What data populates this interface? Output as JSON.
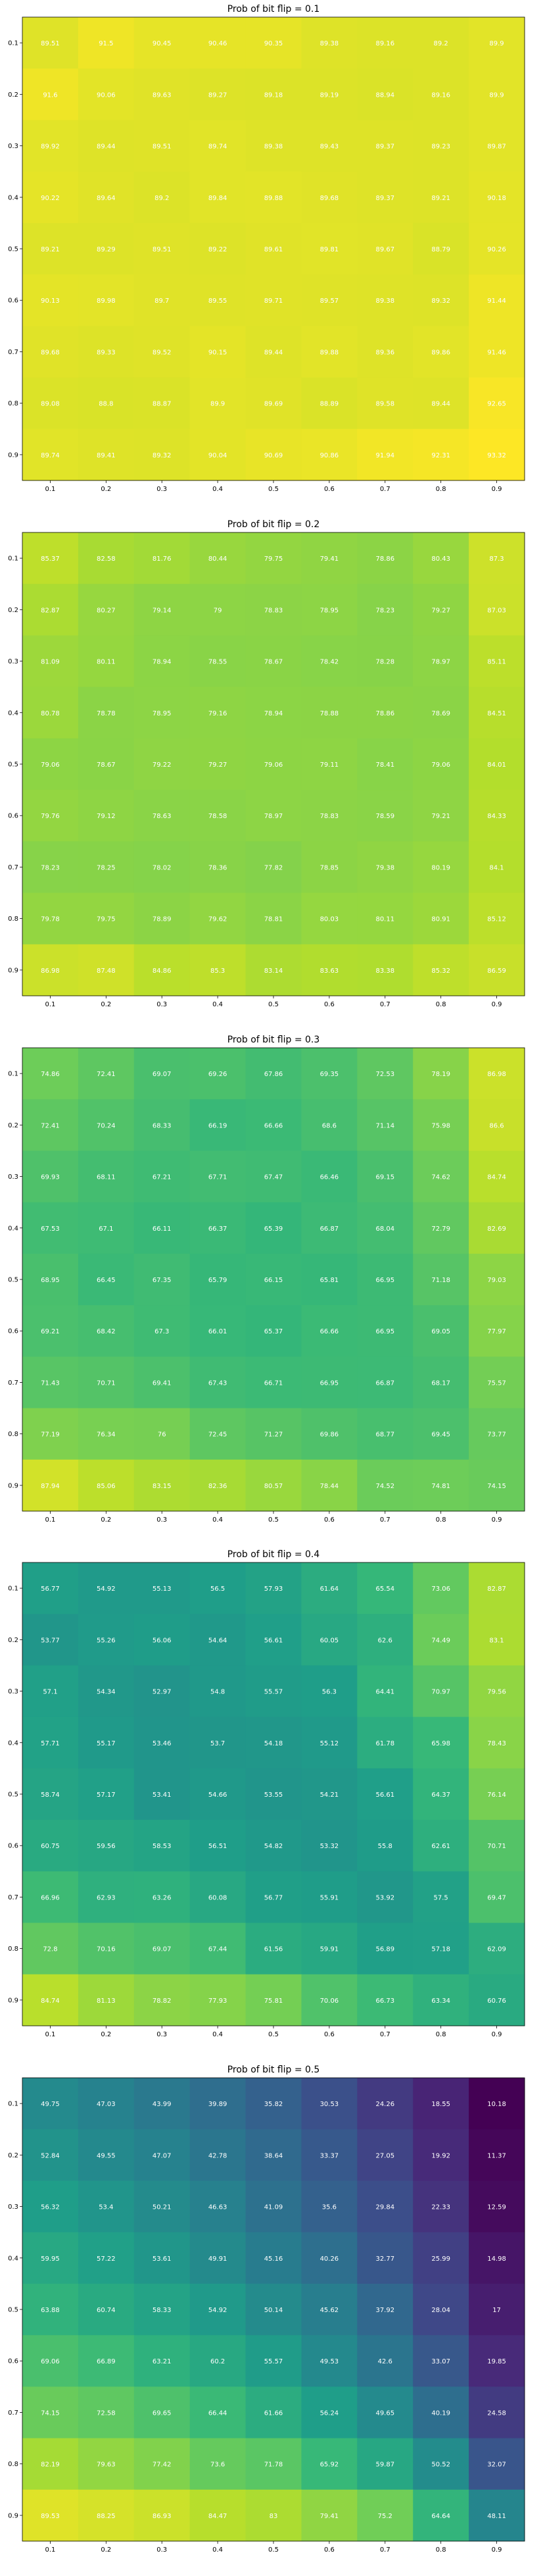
{
  "chart_data": [
    {
      "type": "heatmap",
      "title": "Prob of bit flip = 0.1",
      "x": [
        "0.1",
        "0.2",
        "0.3",
        "0.4",
        "0.5",
        "0.6",
        "0.7",
        "0.8",
        "0.9"
      ],
      "y": [
        "0.1",
        "0.2",
        "0.3",
        "0.4",
        "0.5",
        "0.6",
        "0.7",
        "0.8",
        "0.9"
      ],
      "values": [
        [
          89.51,
          91.5,
          90.45,
          90.46,
          90.35,
          89.38,
          89.16,
          89.2,
          89.9
        ],
        [
          91.6,
          90.06,
          89.63,
          89.27,
          89.18,
          89.19,
          88.94,
          89.16,
          89.9
        ],
        [
          89.92,
          89.44,
          89.51,
          89.74,
          89.38,
          89.43,
          89.37,
          89.23,
          89.87
        ],
        [
          90.22,
          89.64,
          89.2,
          89.84,
          89.88,
          89.68,
          89.37,
          89.21,
          90.18
        ],
        [
          89.21,
          89.29,
          89.51,
          89.22,
          89.61,
          89.81,
          89.67,
          88.79,
          90.26
        ],
        [
          90.13,
          89.98,
          89.7,
          89.55,
          89.71,
          89.57,
          89.38,
          89.32,
          91.44
        ],
        [
          89.68,
          89.33,
          89.52,
          90.15,
          89.44,
          89.88,
          89.36,
          89.86,
          91.46
        ],
        [
          89.08,
          88.8,
          88.87,
          89.9,
          89.69,
          88.89,
          89.58,
          89.44,
          92.65
        ],
        [
          89.74,
          89.41,
          89.32,
          90.04,
          90.69,
          90.86,
          91.94,
          92.31,
          93.32
        ]
      ]
    },
    {
      "type": "heatmap",
      "title": "Prob of bit flip = 0.2",
      "x": [
        "0.1",
        "0.2",
        "0.3",
        "0.4",
        "0.5",
        "0.6",
        "0.7",
        "0.8",
        "0.9"
      ],
      "y": [
        "0.1",
        "0.2",
        "0.3",
        "0.4",
        "0.5",
        "0.6",
        "0.7",
        "0.8",
        "0.9"
      ],
      "values": [
        [
          85.37,
          82.58,
          81.76,
          80.44,
          79.75,
          79.41,
          78.86,
          80.43,
          87.3
        ],
        [
          82.87,
          80.27,
          79.14,
          79.0,
          78.83,
          78.95,
          78.23,
          79.27,
          87.03
        ],
        [
          81.09,
          80.11,
          78.94,
          78.55,
          78.67,
          78.42,
          78.28,
          78.97,
          85.11
        ],
        [
          80.78,
          78.78,
          78.95,
          79.16,
          78.94,
          78.88,
          78.86,
          78.69,
          84.51
        ],
        [
          79.06,
          78.67,
          79.22,
          79.27,
          79.06,
          79.11,
          78.41,
          79.06,
          84.01
        ],
        [
          79.76,
          79.12,
          78.63,
          78.58,
          78.97,
          78.83,
          78.59,
          79.21,
          84.33
        ],
        [
          78.23,
          78.25,
          78.02,
          78.36,
          77.82,
          78.85,
          79.38,
          80.19,
          84.1
        ],
        [
          79.78,
          79.75,
          78.89,
          79.62,
          78.81,
          80.03,
          80.11,
          80.91,
          85.12
        ],
        [
          86.98,
          87.48,
          84.86,
          85.3,
          83.14,
          83.63,
          83.38,
          85.32,
          86.59
        ]
      ]
    },
    {
      "type": "heatmap",
      "title": "Prob of bit flip = 0.3",
      "x": [
        "0.1",
        "0.2",
        "0.3",
        "0.4",
        "0.5",
        "0.6",
        "0.7",
        "0.8",
        "0.9"
      ],
      "y": [
        "0.1",
        "0.2",
        "0.3",
        "0.4",
        "0.5",
        "0.6",
        "0.7",
        "0.8",
        "0.9"
      ],
      "values": [
        [
          74.86,
          72.41,
          69.07,
          69.26,
          67.86,
          69.35,
          72.53,
          78.19,
          86.98
        ],
        [
          72.41,
          70.24,
          68.33,
          66.19,
          66.66,
          68.6,
          71.14,
          75.98,
          86.6
        ],
        [
          69.93,
          68.11,
          67.21,
          67.71,
          67.47,
          66.46,
          69.15,
          74.62,
          84.74
        ],
        [
          67.53,
          67.1,
          66.11,
          66.37,
          65.39,
          66.87,
          68.04,
          72.79,
          82.69
        ],
        [
          68.95,
          66.45,
          67.35,
          65.79,
          66.15,
          65.81,
          66.95,
          71.18,
          79.03
        ],
        [
          69.21,
          68.42,
          67.3,
          66.01,
          65.37,
          66.66,
          66.95,
          69.05,
          77.97
        ],
        [
          71.43,
          70.71,
          69.41,
          67.43,
          66.71,
          66.95,
          66.87,
          68.17,
          75.57
        ],
        [
          77.19,
          76.34,
          76.0,
          72.45,
          71.27,
          69.86,
          68.77,
          69.45,
          73.77
        ],
        [
          87.94,
          85.06,
          83.15,
          82.36,
          80.57,
          78.44,
          74.52,
          74.81,
          74.15
        ]
      ]
    },
    {
      "type": "heatmap",
      "title": "Prob of bit flip = 0.4",
      "x": [
        "0.1",
        "0.2",
        "0.3",
        "0.4",
        "0.5",
        "0.6",
        "0.7",
        "0.8",
        "0.9"
      ],
      "y": [
        "0.1",
        "0.2",
        "0.3",
        "0.4",
        "0.5",
        "0.6",
        "0.7",
        "0.8",
        "0.9"
      ],
      "values": [
        [
          56.77,
          54.92,
          55.13,
          56.5,
          57.93,
          61.64,
          65.54,
          73.06,
          82.87
        ],
        [
          53.77,
          55.26,
          56.06,
          54.64,
          56.61,
          60.05,
          62.6,
          74.49,
          83.1
        ],
        [
          57.1,
          54.34,
          52.97,
          54.8,
          55.57,
          56.3,
          64.41,
          70.97,
          79.56
        ],
        [
          57.71,
          55.17,
          53.46,
          53.7,
          54.18,
          55.12,
          61.78,
          65.98,
          78.43
        ],
        [
          58.74,
          57.17,
          53.41,
          54.66,
          53.55,
          54.21,
          56.61,
          64.37,
          76.14
        ],
        [
          60.75,
          59.56,
          58.53,
          56.51,
          54.82,
          53.32,
          55.8,
          62.61,
          70.71
        ],
        [
          66.96,
          62.93,
          63.26,
          60.08,
          56.77,
          55.91,
          53.92,
          57.5,
          69.47
        ],
        [
          72.8,
          70.16,
          69.07,
          67.44,
          61.56,
          59.91,
          56.89,
          57.18,
          62.09
        ],
        [
          84.74,
          81.13,
          78.82,
          77.93,
          75.81,
          70.06,
          66.73,
          63.34,
          60.76
        ]
      ]
    },
    {
      "type": "heatmap",
      "title": "Prob of bit flip = 0.5",
      "x": [
        "0.1",
        "0.2",
        "0.3",
        "0.4",
        "0.5",
        "0.6",
        "0.7",
        "0.8",
        "0.9"
      ],
      "y": [
        "0.1",
        "0.2",
        "0.3",
        "0.4",
        "0.5",
        "0.6",
        "0.7",
        "0.8",
        "0.9"
      ],
      "values": [
        [
          49.75,
          47.03,
          43.99,
          39.89,
          35.82,
          30.53,
          24.26,
          18.55,
          10.18
        ],
        [
          52.84,
          49.55,
          47.07,
          42.78,
          38.64,
          33.37,
          27.05,
          19.92,
          11.37
        ],
        [
          56.32,
          53.4,
          50.21,
          46.63,
          41.09,
          35.6,
          29.84,
          22.33,
          12.59
        ],
        [
          59.95,
          57.22,
          53.61,
          49.91,
          45.16,
          40.26,
          32.77,
          25.99,
          14.98
        ],
        [
          63.88,
          60.74,
          58.33,
          54.92,
          50.14,
          45.62,
          37.92,
          28.04,
          17.0
        ],
        [
          69.06,
          66.89,
          63.21,
          60.2,
          55.57,
          49.53,
          42.6,
          33.07,
          19.85
        ],
        [
          74.15,
          72.58,
          69.65,
          66.44,
          61.66,
          56.24,
          49.65,
          40.19,
          24.58
        ],
        [
          82.19,
          79.63,
          77.42,
          73.6,
          71.78,
          65.92,
          59.87,
          50.52,
          32.07
        ],
        [
          89.53,
          88.25,
          86.93,
          84.47,
          83.0,
          79.41,
          75.2,
          64.64,
          48.11
        ]
      ]
    }
  ]
}
